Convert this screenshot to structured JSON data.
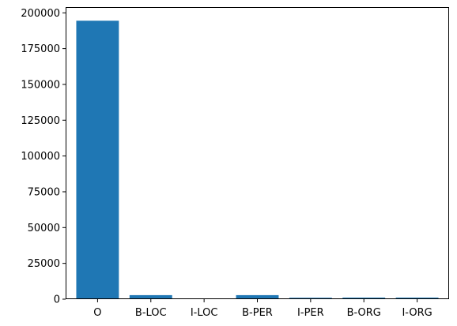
{
  "chart_data": {
    "type": "bar",
    "title": "",
    "xlabel": "",
    "ylabel": "",
    "categories": [
      "O",
      "B-LOC",
      "I-LOC",
      "B-PER",
      "I-PER",
      "B-ORG",
      "I-ORG"
    ],
    "values": [
      194500,
      2800,
      500,
      2800,
      1000,
      1100,
      1100
    ],
    "ylim": [
      0,
      204000
    ],
    "yticks": [
      0,
      25000,
      50000,
      75000,
      100000,
      125000,
      150000,
      175000,
      200000
    ],
    "ytick_labels": [
      "0",
      "25000",
      "50000",
      "75000",
      "100000",
      "125000",
      "150000",
      "175000",
      "200000"
    ],
    "grid": false,
    "legend": "none",
    "bar_color": "#1f77b4"
  }
}
